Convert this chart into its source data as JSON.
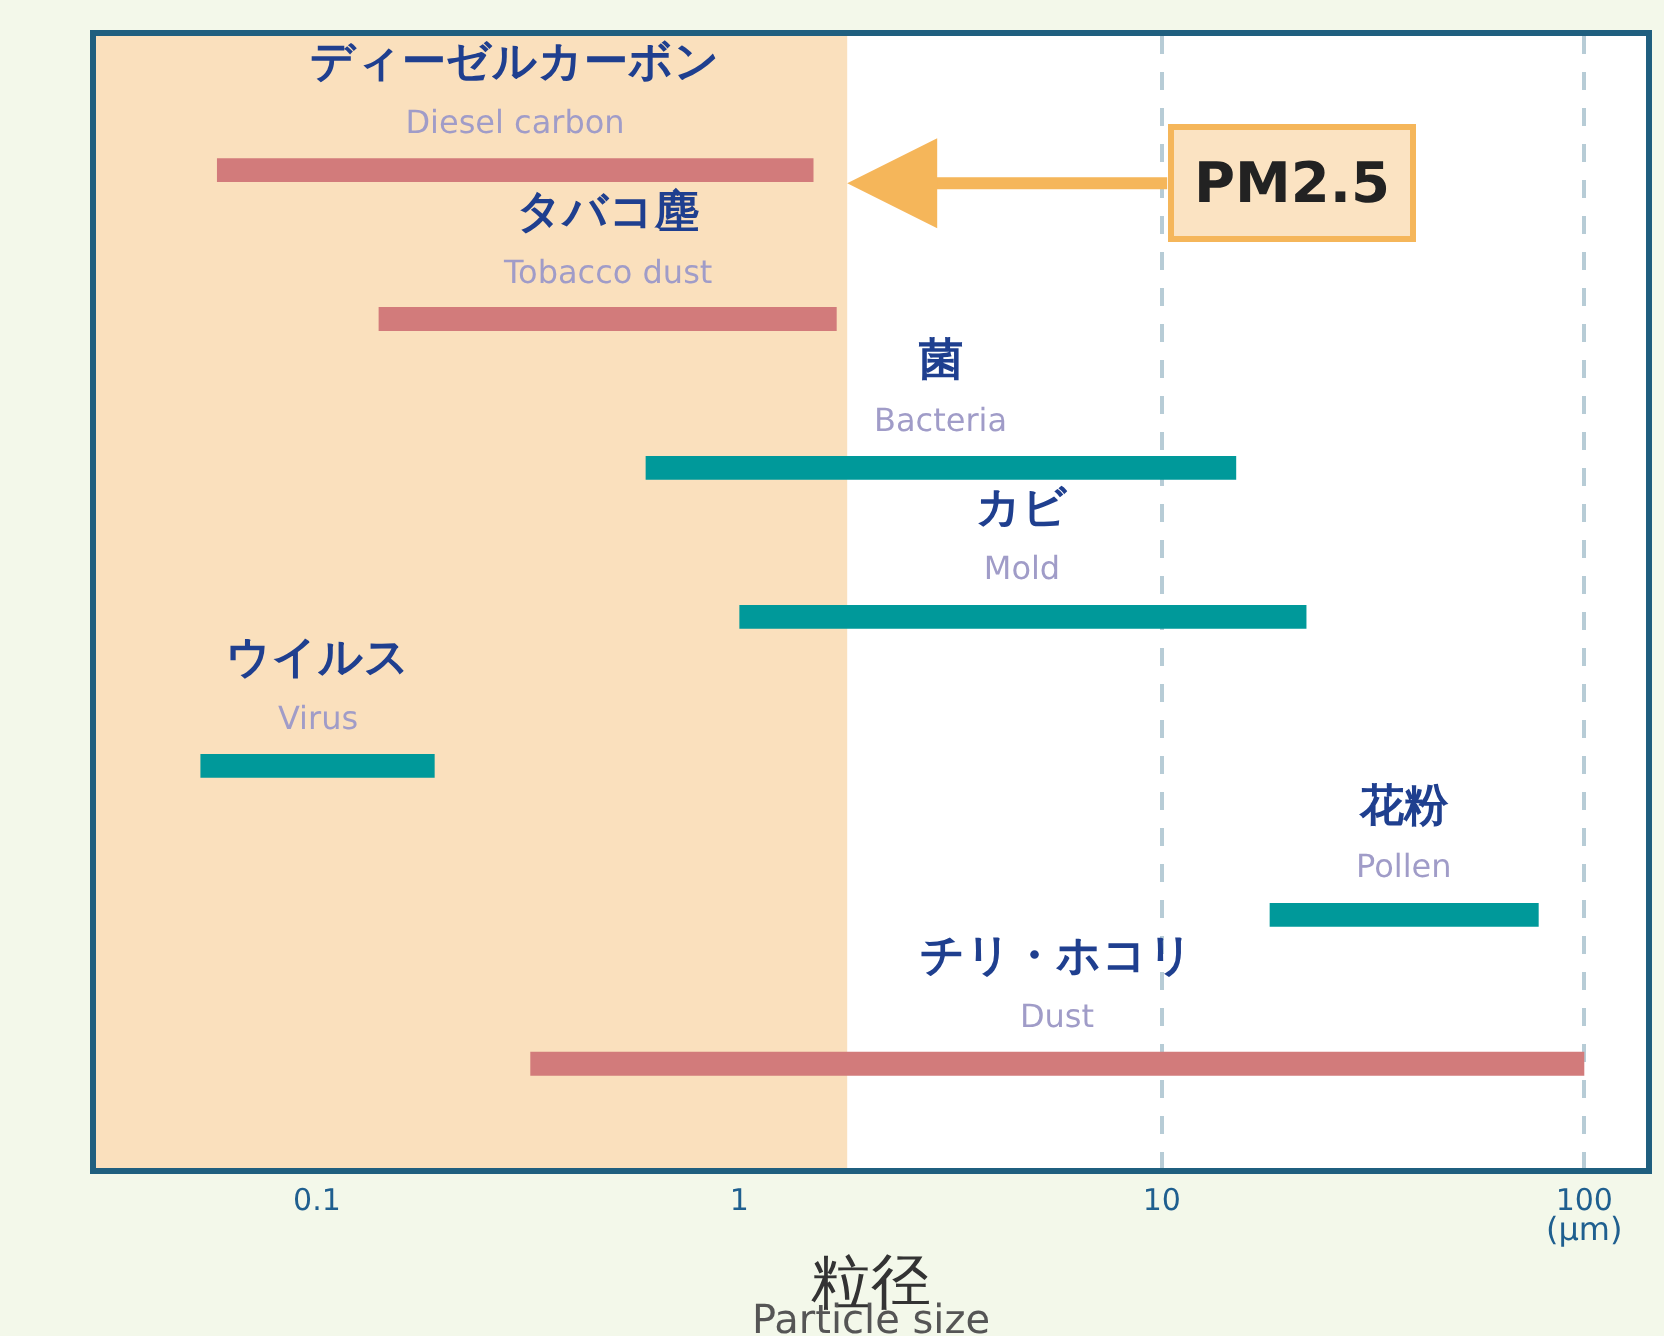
{
  "chart_data": {
    "type": "bar",
    "orientation": "horizontal",
    "log": "x",
    "categories": [
      "ディーゼルカーボン\nDiesel carbon",
      "タバコ塵\nTobacco dust",
      "菌\nBacteria",
      "カビ\nMold",
      "ウイルス\nVirus",
      "花粉\nPollen",
      "チリ・ホコリ\nDust"
    ],
    "base": [
      0.058,
      0.14,
      0.6,
      1,
      0.053,
      18,
      0.32
    ],
    "values": [
      1.44,
      1.56,
      14.4,
      21,
      0.137,
      60,
      99.7
    ],
    "colors": [
      "#d27b7b",
      "#d27b7b",
      "#00999a",
      "#00999a",
      "#00999a",
      "#00999a",
      "#d27b7b"
    ],
    "xlim": [
      0.03,
      140
    ],
    "xticks": [
      0.1,
      1,
      10,
      100
    ],
    "xlabel": "粒径\nParticle size",
    "annotations": [
      "(μm)"
    ],
    "bands": [
      {
        "axis": "x",
        "from": 0.03,
        "to": 1.8,
        "label": "PM2.5",
        "color": "#fae0bd"
      }
    ],
    "grid": "x",
    "tick_labels": "x",
    "legend": false
  }
}
